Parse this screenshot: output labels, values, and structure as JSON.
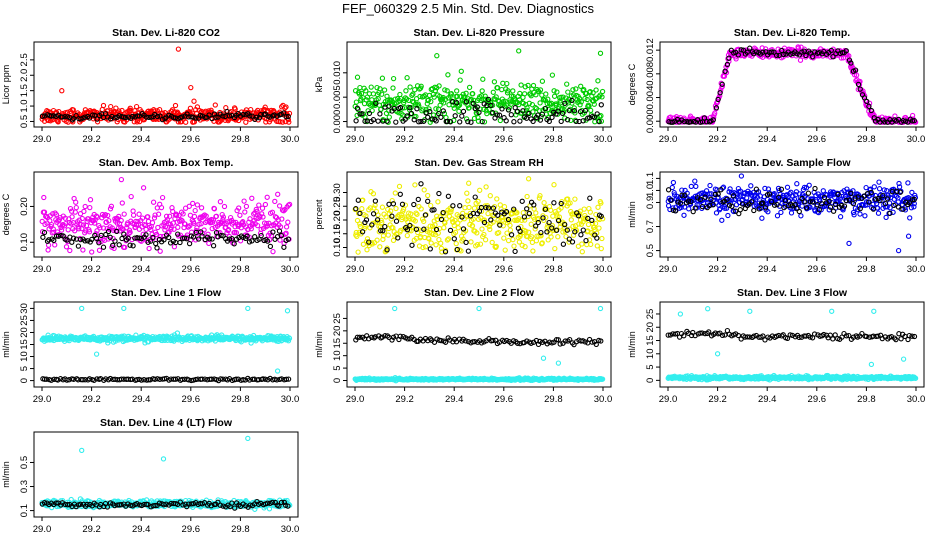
{
  "page": {
    "title": "FEF_060329  2.5 Min. Std. Dev. Diagnostics"
  },
  "chart_data": [
    {
      "id": "co2",
      "type": "scatter",
      "title": "Stan. Dev. Li-820 CO2",
      "ylabel": "Licor ppm",
      "xlim": [
        29.0,
        30.0
      ],
      "ylim": [
        0.45,
        2.95
      ],
      "x_ticks": [
        "29.0",
        "29.2",
        "29.4",
        "29.6",
        "29.8",
        "30.0"
      ],
      "y_ticks": [
        "0.5",
        "1.0",
        "1.5",
        "2.0",
        "2.5"
      ],
      "colors": {
        "primary": "#ff0000",
        "secondary": "#000000"
      },
      "trend": {
        "primary": [
          [
            29.0,
            0.7
          ],
          [
            30.0,
            0.7
          ]
        ],
        "secondary": [
          [
            29.0,
            0.65
          ],
          [
            30.0,
            0.68
          ]
        ]
      },
      "spread": {
        "primary": 0.12,
        "secondary": 0.05
      },
      "outliers": [
        [
          29.55,
          2.85
        ],
        [
          29.08,
          1.5
        ],
        [
          29.6,
          1.6
        ]
      ]
    },
    {
      "id": "pressure",
      "type": "scatter",
      "title": "Stan. Dev. Li-820 Pressure",
      "ylabel": "kPa",
      "xlim": [
        29.0,
        30.0
      ],
      "ylim": [
        -0.0003,
        0.0155
      ],
      "x_ticks": [
        "29.0",
        "29.2",
        "29.4",
        "29.6",
        "29.8",
        "30.0"
      ],
      "y_ticks": [
        "0.000",
        "0.005",
        "0.010"
      ],
      "colors": {
        "primary": "#00cc00",
        "secondary": "#000000"
      },
      "trend": {
        "primary": [
          [
            29.0,
            0.004
          ],
          [
            30.0,
            0.004
          ]
        ],
        "secondary": [
          [
            29.0,
            0.001
          ],
          [
            30.0,
            0.001
          ]
        ]
      },
      "spread": {
        "primary": 0.002,
        "secondary": 0.0015
      },
      "outliers": [
        [
          29.33,
          0.0135
        ],
        [
          29.66,
          0.0145
        ],
        [
          29.99,
          0.014
        ]
      ]
    },
    {
      "id": "temp",
      "type": "scatter",
      "title": "Stan. Dev. Li-820 Temp.",
      "ylabel": "degrees C",
      "xlim": [
        29.0,
        30.0
      ],
      "ylim": [
        -0.0003,
        0.0127
      ],
      "x_ticks": [
        "29.0",
        "29.2",
        "29.4",
        "29.6",
        "29.8",
        "30.0"
      ],
      "y_ticks": [
        "0.000",
        "0.004",
        "0.008",
        "0.012"
      ],
      "colors": {
        "primary": "#ee00ee",
        "secondary": "#000000"
      },
      "trend": {
        "primary": [
          [
            29.0,
            0.0
          ],
          [
            29.18,
            0.0
          ],
          [
            29.25,
            0.0115
          ],
          [
            29.72,
            0.0115
          ],
          [
            29.8,
            0.003
          ],
          [
            29.84,
            0.0
          ],
          [
            30.0,
            0.0
          ]
        ],
        "secondary": [
          [
            29.0,
            0.0
          ],
          [
            29.18,
            0.0
          ],
          [
            29.25,
            0.0115
          ],
          [
            29.72,
            0.0115
          ],
          [
            29.8,
            0.003
          ],
          [
            29.84,
            0.0
          ],
          [
            30.0,
            0.0
          ]
        ]
      },
      "spread": {
        "primary": 0.0004,
        "secondary": 0.0003
      },
      "outliers": []
    },
    {
      "id": "ambbox",
      "type": "scatter",
      "title": "Stan. Dev. Amb. Box Temp.",
      "ylabel": "degrees C",
      "xlim": [
        29.0,
        30.0
      ],
      "ylim": [
        0.07,
        0.285
      ],
      "x_ticks": [
        "29.0",
        "29.2",
        "29.4",
        "29.6",
        "29.8",
        "30.0"
      ],
      "y_ticks": [
        "0.10",
        "0.20"
      ],
      "colors": {
        "primary": "#ee00ee",
        "secondary": "#000000"
      },
      "trend": {
        "primary": [
          [
            29.0,
            0.15
          ],
          [
            30.0,
            0.15
          ]
        ],
        "secondary": [
          [
            29.0,
            0.11
          ],
          [
            30.0,
            0.11
          ]
        ]
      },
      "spread": {
        "primary": 0.03,
        "secondary": 0.01
      },
      "outliers": [
        [
          29.32,
          0.275
        ]
      ]
    },
    {
      "id": "rh",
      "type": "scatter",
      "title": "Stan. Dev. Gas Stream RH",
      "ylabel": "percent",
      "xlim": [
        29.0,
        30.0
      ],
      "ylim": [
        0.08,
        0.36
      ],
      "x_ticks": [
        "29.0",
        "29.2",
        "29.4",
        "29.6",
        "29.8",
        "30.0"
      ],
      "y_ticks": [
        "0.10",
        "0.15",
        "0.20",
        "0.25",
        "0.30"
      ],
      "colors": {
        "primary": "#eeee00",
        "secondary": "#000000"
      },
      "trend": {
        "primary": [
          [
            29.0,
            0.19
          ],
          [
            30.0,
            0.19
          ]
        ],
        "secondary": [
          [
            29.0,
            0.2
          ],
          [
            30.0,
            0.2
          ]
        ]
      },
      "spread": {
        "primary": 0.055,
        "secondary": 0.05
      },
      "outliers": [
        [
          29.7,
          0.35
        ]
      ]
    },
    {
      "id": "sampleflow",
      "type": "scatter",
      "title": "Stan. Dev. Sample Flow",
      "ylabel": "ml/min",
      "xlim": [
        29.0,
        30.0
      ],
      "ylim": [
        0.48,
        1.12
      ],
      "x_ticks": [
        "29.0",
        "29.2",
        "29.4",
        "29.6",
        "29.8",
        "30.0"
      ],
      "y_ticks": [
        "0.5",
        "0.7",
        "0.9",
        "1.0",
        "1.1"
      ],
      "colors": {
        "primary": "#0000ee",
        "secondary": "#000000"
      },
      "trend": {
        "primary": [
          [
            29.0,
            0.92
          ],
          [
            30.0,
            0.92
          ]
        ],
        "secondary": [
          [
            29.0,
            0.9
          ],
          [
            30.0,
            0.9
          ]
        ]
      },
      "spread": {
        "primary": 0.06,
        "secondary": 0.05
      },
      "outliers": [
        [
          29.93,
          0.5
        ],
        [
          29.73,
          0.56
        ],
        [
          29.97,
          0.62
        ]
      ]
    },
    {
      "id": "line1",
      "type": "scatter",
      "title": "Stan. Dev. Line 1 Flow",
      "ylabel": "ml/min",
      "xlim": [
        29.0,
        30.0
      ],
      "ylim": [
        -1,
        31
      ],
      "x_ticks": [
        "29.0",
        "29.2",
        "29.4",
        "29.6",
        "29.8",
        "30.0"
      ],
      "y_ticks": [
        "0",
        "5",
        "10",
        "15",
        "20",
        "25",
        "30"
      ],
      "colors": {
        "primary": "#33eeee",
        "secondary": "#000000"
      },
      "trend": {
        "primary": [
          [
            29.0,
            17.5
          ],
          [
            30.0,
            17.5
          ]
        ],
        "secondary": [
          [
            29.0,
            0.5
          ],
          [
            30.0,
            0.5
          ]
        ]
      },
      "spread": {
        "primary": 0.6,
        "secondary": 0.2
      },
      "outliers": [
        [
          29.16,
          30
        ],
        [
          29.33,
          30
        ],
        [
          29.83,
          30
        ],
        [
          29.99,
          29
        ],
        [
          29.22,
          11
        ],
        [
          29.95,
          4
        ]
      ]
    },
    {
      "id": "line2",
      "type": "scatter",
      "title": "Stan. Dev. Line 2 Flow",
      "ylabel": "ml/min",
      "xlim": [
        29.0,
        30.0
      ],
      "ylim": [
        -1,
        30
      ],
      "x_ticks": [
        "29.0",
        "29.2",
        "29.4",
        "29.6",
        "29.8",
        "30.0"
      ],
      "y_ticks": [
        "0",
        "5",
        "10",
        "15",
        "20",
        "25"
      ],
      "colors": {
        "primary": "#33eeee",
        "secondary": "#000000"
      },
      "trend": {
        "primary": [
          [
            29.0,
            0.5
          ],
          [
            30.0,
            0.5
          ]
        ],
        "secondary": [
          [
            29.0,
            17.5
          ],
          [
            29.2,
            17.5
          ],
          [
            29.25,
            16
          ],
          [
            29.7,
            15.5
          ],
          [
            30.0,
            15.5
          ]
        ]
      },
      "spread": {
        "primary": 0.2,
        "secondary": 0.5
      },
      "outliers": [
        [
          29.16,
          29
        ],
        [
          29.5,
          29
        ],
        [
          29.99,
          29
        ],
        [
          29.76,
          9
        ],
        [
          29.82,
          7
        ]
      ]
    },
    {
      "id": "line3",
      "type": "scatter",
      "title": "Stan. Dev. Line 3 Flow",
      "ylabel": "ml/min",
      "xlim": [
        29.0,
        30.0
      ],
      "ylim": [
        -1,
        28
      ],
      "x_ticks": [
        "29.0",
        "29.2",
        "29.4",
        "29.6",
        "29.8",
        "30.0"
      ],
      "y_ticks": [
        "0",
        "5",
        "10",
        "15",
        "20",
        "25"
      ],
      "colors": {
        "primary": "#33eeee",
        "secondary": "#000000"
      },
      "trend": {
        "primary": [
          [
            29.0,
            1.0
          ],
          [
            30.0,
            1.0
          ]
        ],
        "secondary": [
          [
            29.0,
            17.5
          ],
          [
            29.25,
            17.5
          ],
          [
            29.3,
            16.5
          ],
          [
            30.0,
            16.5
          ]
        ]
      },
      "spread": {
        "primary": 0.3,
        "secondary": 0.5
      },
      "outliers": [
        [
          29.05,
          25
        ],
        [
          29.16,
          27
        ],
        [
          29.33,
          26
        ],
        [
          29.66,
          26
        ],
        [
          29.83,
          26
        ],
        [
          29.82,
          6
        ],
        [
          29.95,
          8
        ],
        [
          29.2,
          10
        ]
      ]
    },
    {
      "id": "line4",
      "type": "scatter",
      "title": "Stan. Dev. Line 4 (LT) Flow",
      "ylabel": "ml/min",
      "xlim": [
        29.0,
        30.0
      ],
      "ylim": [
        0.08,
        0.72
      ],
      "x_ticks": [
        "29.0",
        "29.2",
        "29.4",
        "29.6",
        "29.8",
        "30.0"
      ],
      "y_ticks": [
        "0.1",
        "0.3",
        "0.5"
      ],
      "colors": {
        "primary": "#33eeee",
        "secondary": "#000000"
      },
      "trend": {
        "primary": [
          [
            29.0,
            0.155
          ],
          [
            30.0,
            0.155
          ]
        ],
        "secondary": [
          [
            29.0,
            0.15
          ],
          [
            30.0,
            0.15
          ]
        ]
      },
      "spread": {
        "primary": 0.015,
        "secondary": 0.01
      },
      "outliers": [
        [
          29.16,
          0.6
        ],
        [
          29.49,
          0.53
        ],
        [
          29.83,
          0.7
        ]
      ]
    }
  ]
}
